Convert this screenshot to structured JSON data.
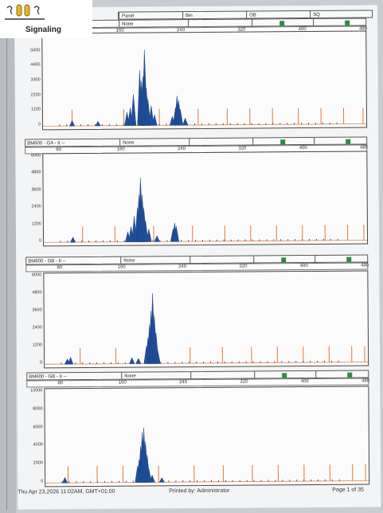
{
  "logo": {
    "text": "Signaling"
  },
  "header_top": {
    "panel": "Panel",
    "bin": "Bin",
    "ob": "OB",
    "sq": "SQ",
    "none": "None"
  },
  "panels": [
    {
      "title": "",
      "none": "None",
      "x_ticks": [
        "160",
        "240",
        "320",
        "400",
        "480"
      ],
      "y_ticks": [
        "6000",
        "5000",
        "4400",
        "3300",
        "2200",
        "1100",
        "0"
      ],
      "peaks": [
        {
          "x": 0.3,
          "h": 0.62
        },
        {
          "x": 0.305,
          "h": 0.5
        },
        {
          "x": 0.31,
          "h": 0.55
        },
        {
          "x": 0.315,
          "h": 0.85
        },
        {
          "x": 0.32,
          "h": 0.42
        },
        {
          "x": 0.325,
          "h": 0.3
        },
        {
          "x": 0.28,
          "h": 0.35
        },
        {
          "x": 0.27,
          "h": 0.2
        },
        {
          "x": 0.26,
          "h": 0.15
        },
        {
          "x": 0.335,
          "h": 0.22
        },
        {
          "x": 0.345,
          "h": 0.12
        },
        {
          "x": 0.41,
          "h": 0.2
        },
        {
          "x": 0.415,
          "h": 0.33
        },
        {
          "x": 0.42,
          "h": 0.28
        },
        {
          "x": 0.425,
          "h": 0.18
        },
        {
          "x": 0.4,
          "h": 0.1
        },
        {
          "x": 0.44,
          "h": 0.08
        },
        {
          "x": 0.09,
          "h": 0.06
        },
        {
          "x": 0.17,
          "h": 0.05
        }
      ],
      "ladder": [
        0.09,
        0.25,
        0.36,
        0.48,
        0.57,
        0.64,
        0.71,
        0.79,
        0.86,
        0.93,
        0.99
      ]
    },
    {
      "title": "BM600 - GA - II --",
      "none": "None",
      "x_ticks": [
        "80",
        "160",
        "240",
        "320",
        "400",
        "480"
      ],
      "y_ticks": [
        "6000",
        "4800",
        "3600",
        "2400",
        "1200",
        "0"
      ],
      "peaks": [
        {
          "x": 0.29,
          "h": 0.4
        },
        {
          "x": 0.295,
          "h": 0.55
        },
        {
          "x": 0.3,
          "h": 0.75
        },
        {
          "x": 0.305,
          "h": 0.55
        },
        {
          "x": 0.31,
          "h": 0.4
        },
        {
          "x": 0.315,
          "h": 0.25
        },
        {
          "x": 0.28,
          "h": 0.3
        },
        {
          "x": 0.27,
          "h": 0.18
        },
        {
          "x": 0.26,
          "h": 0.12
        },
        {
          "x": 0.325,
          "h": 0.15
        },
        {
          "x": 0.4,
          "h": 0.15
        },
        {
          "x": 0.405,
          "h": 0.22
        },
        {
          "x": 0.41,
          "h": 0.18
        },
        {
          "x": 0.09,
          "h": 0.06
        },
        {
          "x": 0.35,
          "h": 0.07
        }
      ],
      "ladder": [
        0.12,
        0.22,
        0.34,
        0.46,
        0.56,
        0.64,
        0.72,
        0.8,
        0.87,
        0.94,
        0.99
      ]
    },
    {
      "title": "BM600 - GB - II --",
      "none": "None",
      "x_ticks": [
        "80",
        "160",
        "240",
        "320",
        "400",
        "480"
      ],
      "y_ticks": [
        "6000",
        "4800",
        "3600",
        "2400",
        "1200",
        "0"
      ],
      "peaks": [
        {
          "x": 0.32,
          "h": 0.3
        },
        {
          "x": 0.325,
          "h": 0.45
        },
        {
          "x": 0.33,
          "h": 0.6
        },
        {
          "x": 0.335,
          "h": 0.8
        },
        {
          "x": 0.34,
          "h": 0.55
        },
        {
          "x": 0.345,
          "h": 0.35
        },
        {
          "x": 0.315,
          "h": 0.2
        },
        {
          "x": 0.35,
          "h": 0.15
        },
        {
          "x": 0.08,
          "h": 0.08
        },
        {
          "x": 0.07,
          "h": 0.06
        },
        {
          "x": 0.27,
          "h": 0.07
        },
        {
          "x": 0.29,
          "h": 0.06
        }
      ],
      "ladder": [
        0.11,
        0.22,
        0.33,
        0.45,
        0.55,
        0.64,
        0.72,
        0.8,
        0.88,
        0.95,
        0.99
      ]
    },
    {
      "title": "BM600 - GB - II --",
      "none": "None",
      "x_ticks": [
        "80",
        "160",
        "240",
        "320",
        "400",
        "480"
      ],
      "y_ticks": [
        "10000",
        "8000",
        "6000",
        "4000",
        "2000",
        "0"
      ],
      "peaks": [
        {
          "x": 0.29,
          "h": 0.25
        },
        {
          "x": 0.295,
          "h": 0.4
        },
        {
          "x": 0.3,
          "h": 0.55
        },
        {
          "x": 0.305,
          "h": 0.6
        },
        {
          "x": 0.31,
          "h": 0.45
        },
        {
          "x": 0.315,
          "h": 0.3
        },
        {
          "x": 0.285,
          "h": 0.18
        },
        {
          "x": 0.32,
          "h": 0.15
        },
        {
          "x": 0.33,
          "h": 0.08
        },
        {
          "x": 0.06,
          "h": 0.06
        },
        {
          "x": 0.36,
          "h": 0.05
        }
      ],
      "ladder": [
        0.07,
        0.16,
        0.24,
        0.35,
        0.46,
        0.55,
        0.64,
        0.72,
        0.8,
        0.88,
        0.95,
        0.99
      ]
    }
  ],
  "footer": {
    "timestamp": "Thu Apr 23,2026 11:02AM, GMT+01:00",
    "printed_by": "Printed by: Administrator",
    "page": "Page 1 of 35"
  }
}
